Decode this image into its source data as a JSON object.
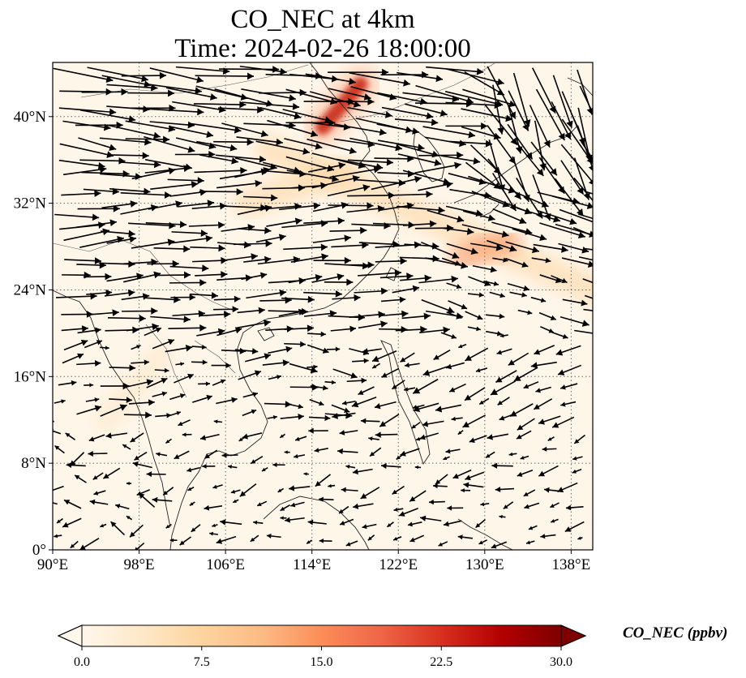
{
  "title": {
    "line1": "CO_NEC at 4km",
    "line2": "Time: 2024-02-26 18:00:00"
  },
  "map": {
    "lon_range": [
      90,
      140
    ],
    "lat_range": [
      0,
      45
    ],
    "lon_ticks": [
      {
        "value": 90,
        "label": "90°E"
      },
      {
        "value": 98,
        "label": "98°E"
      },
      {
        "value": 106,
        "label": "106°E"
      },
      {
        "value": 114,
        "label": "114°E"
      },
      {
        "value": 122,
        "label": "122°E"
      },
      {
        "value": 130,
        "label": "130°E"
      },
      {
        "value": 138,
        "label": "138°E"
      }
    ],
    "lat_ticks": [
      {
        "value": 0,
        "label": "0°"
      },
      {
        "value": 8,
        "label": "8°N"
      },
      {
        "value": 16,
        "label": "16°N"
      },
      {
        "value": 24,
        "label": "24°N"
      },
      {
        "value": 32,
        "label": "32°N"
      },
      {
        "value": 40,
        "label": "40°N"
      }
    ],
    "gridlines": "dotted",
    "plumes": [
      {
        "from": [
          115,
          39
        ],
        "to": [
          118.5,
          43
        ],
        "level": 28
      },
      {
        "from": [
          110,
          37
        ],
        "to": [
          140,
          24
        ],
        "level": 9
      },
      {
        "from": [
          128,
          27
        ],
        "to": [
          132,
          28.5
        ],
        "level": 14
      },
      {
        "from": [
          108,
          32
        ],
        "to": [
          117,
          35
        ],
        "level": 8
      },
      {
        "from": [
          95,
          12
        ],
        "to": [
          100,
          18
        ],
        "level": 5
      }
    ],
    "wind_field": "arrows"
  },
  "colorbar": {
    "label": "CO_NEC (ppbv)",
    "min": 0,
    "max": 30,
    "extend": "both",
    "ticks": [
      "0.0",
      "7.5",
      "15.0",
      "22.5",
      "30.0"
    ],
    "colormap": [
      "#fff7ec",
      "#fee8c8",
      "#fdd49e",
      "#fdbb84",
      "#fc8d59",
      "#ef6548",
      "#d7301f",
      "#b30000",
      "#7f0000"
    ]
  }
}
